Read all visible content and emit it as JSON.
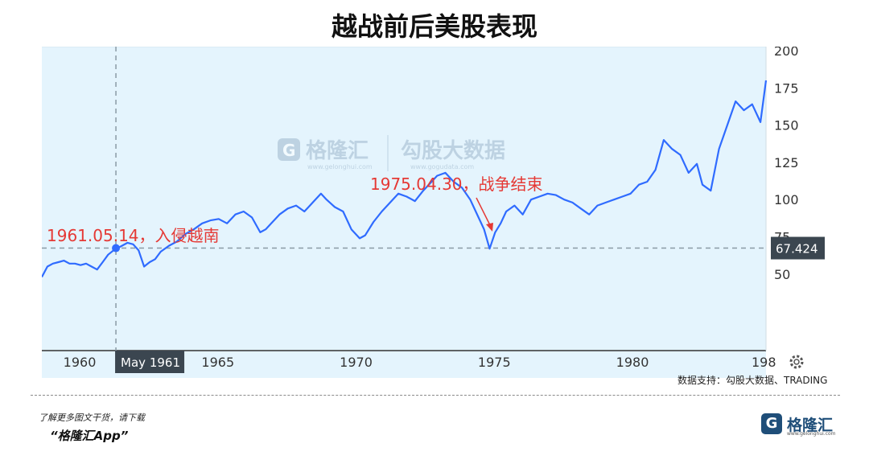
{
  "title": "越战前后美股表现",
  "chart_data": {
    "type": "line",
    "x_ticks": [
      "1960",
      "1965",
      "1970",
      "1975",
      "1980",
      "198"
    ],
    "y_ticks": [
      50,
      75,
      100,
      125,
      150,
      175,
      200
    ],
    "ylim": [
      25,
      200
    ],
    "xlim": [
      1958.7,
      1984.9
    ],
    "series": [
      {
        "color": "#2f6bff",
        "x": [
          1958.7,
          1958.9,
          1959.1,
          1959.3,
          1959.5,
          1959.7,
          1959.9,
          1960.1,
          1960.3,
          1960.5,
          1960.7,
          1960.9,
          1961.1,
          1961.3,
          1961.4,
          1961.6,
          1961.8,
          1962.0,
          1962.2,
          1962.4,
          1962.6,
          1962.8,
          1963.0,
          1963.3,
          1963.6,
          1963.9,
          1964.2,
          1964.5,
          1964.8,
          1965.1,
          1965.4,
          1965.7,
          1966.0,
          1966.3,
          1966.6,
          1966.8,
          1967.0,
          1967.3,
          1967.6,
          1967.9,
          1968.2,
          1968.5,
          1968.8,
          1969.0,
          1969.3,
          1969.6,
          1969.9,
          1970.2,
          1970.4,
          1970.7,
          1971.0,
          1971.3,
          1971.6,
          1971.9,
          1972.2,
          1972.5,
          1972.8,
          1973.0,
          1973.3,
          1973.6,
          1973.9,
          1974.2,
          1974.5,
          1974.7,
          1974.9,
          1975.1,
          1975.3,
          1975.5,
          1975.8,
          1976.1,
          1976.4,
          1976.7,
          1977.0,
          1977.3,
          1977.6,
          1977.9,
          1978.2,
          1978.5,
          1978.8,
          1979.1,
          1979.4,
          1979.7,
          1980.0,
          1980.3,
          1980.6,
          1980.9,
          1981.2,
          1981.5,
          1981.8,
          1982.1,
          1982.4,
          1982.6,
          1982.9,
          1983.2,
          1983.5,
          1983.8,
          1984.1,
          1984.4,
          1984.7,
          1984.9
        ],
        "values": [
          48,
          55,
          57,
          58,
          59,
          57,
          57,
          56,
          57,
          55,
          53,
          58,
          63,
          66,
          67,
          69,
          71,
          70,
          66,
          55,
          58,
          60,
          65,
          69,
          72,
          77,
          80,
          84,
          86,
          87,
          84,
          90,
          92,
          88,
          78,
          80,
          84,
          90,
          94,
          96,
          92,
          98,
          104,
          100,
          95,
          92,
          80,
          74,
          76,
          85,
          92,
          98,
          104,
          102,
          99,
          106,
          112,
          116,
          118,
          112,
          108,
          100,
          88,
          80,
          67,
          78,
          84,
          92,
          96,
          90,
          100,
          102,
          104,
          103,
          100,
          98,
          94,
          90,
          96,
          98,
          100,
          102,
          104,
          110,
          112,
          120,
          140,
          134,
          130,
          118,
          124,
          110,
          106,
          134,
          150,
          166,
          160,
          164,
          152,
          180
        ]
      }
    ],
    "crosshair": {
      "x_label": "May 1961",
      "y_label": "67.424"
    },
    "annotations": [
      {
        "text": "1961.05.14，入侵越南"
      },
      {
        "text": "1975.04.30，战争结束"
      }
    ]
  },
  "watermark": {
    "brand": "格隆汇",
    "sub": "www.gelonghui.com",
    "gogu": "勾股大数据",
    "gogu_sub": "www.gogudata.com"
  },
  "source": "数据支持：勾股大数据、TRADING",
  "footer": {
    "small": "了解更多图文干货，请下载",
    "app": "“格隆汇App”"
  },
  "brand": {
    "logo": "G",
    "name": "格隆汇",
    "sub": "www.gelonghui.com"
  },
  "icons": {
    "settings": "gear-icon"
  }
}
